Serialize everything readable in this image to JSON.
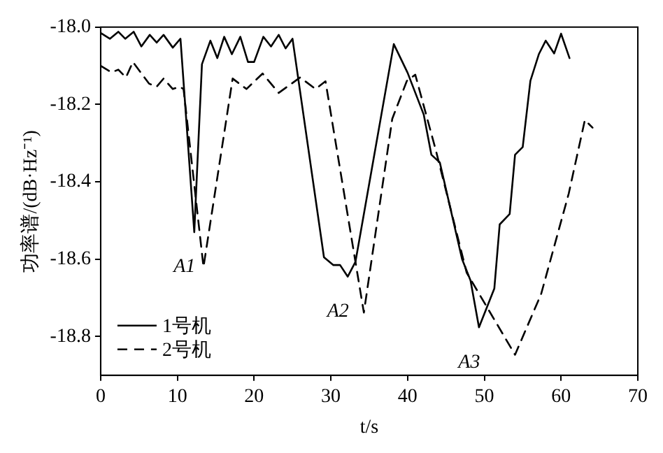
{
  "chart_data": {
    "type": "line",
    "xlabel": "t/s",
    "ylabel": "功率谱/(dB·Hz⁻¹)",
    "xlim": [
      0,
      70
    ],
    "xticks": [
      0,
      10,
      20,
      30,
      40,
      50,
      60,
      70
    ],
    "ylim": [
      -18.9,
      -18.0
    ],
    "yticks": [
      {
        "value": -18.0,
        "label": "-18.0"
      },
      {
        "value": -18.2,
        "label": "-18.2"
      },
      {
        "value": -18.4,
        "label": "-18.4"
      },
      {
        "value": -18.6,
        "label": "-18.6"
      },
      {
        "value": -18.8,
        "label": "-18.8"
      }
    ],
    "grid": false,
    "legend": "bottom left",
    "marker": "none",
    "series": [
      {
        "name": "1号机",
        "color": "#000000",
        "line_style": "solid",
        "x": [
          0,
          1.2,
          2.3,
          3.2,
          4.3,
          5.3,
          6.4,
          7.3,
          8.2,
          9.4,
          10.4,
          12.2,
          13.2,
          14.3,
          15.2,
          16.1,
          17.1,
          18.2,
          19.2,
          20.0,
          21.2,
          22.2,
          23.2,
          24.1,
          25.0,
          29.1,
          30.3,
          31.2,
          32.2,
          33.2,
          38.2,
          40.0,
          42.1,
          43.1,
          44.2,
          47.1,
          48.2,
          49.3,
          51.3,
          52.0,
          53.3,
          54.0,
          55.0,
          56.0,
          57.1,
          58.0,
          59.1,
          60.0,
          61.1
        ],
        "values": [
          -18.015,
          -18.03,
          -18.012,
          -18.03,
          -18.012,
          -18.05,
          -18.02,
          -18.04,
          -18.02,
          -18.053,
          -18.03,
          -18.53,
          -18.096,
          -18.035,
          -18.08,
          -18.025,
          -18.07,
          -18.025,
          -18.09,
          -18.09,
          -18.025,
          -18.05,
          -18.02,
          -18.055,
          -18.03,
          -18.595,
          -18.615,
          -18.615,
          -18.645,
          -18.607,
          -18.044,
          -18.118,
          -18.226,
          -18.33,
          -18.35,
          -18.6,
          -18.655,
          -18.776,
          -18.676,
          -18.51,
          -18.483,
          -18.33,
          -18.31,
          -18.139,
          -18.07,
          -18.035,
          -18.068,
          -18.017,
          -18.08
        ]
      },
      {
        "name": "2号机",
        "color": "#000000",
        "line_style": "dashed",
        "x": [
          0,
          1.4,
          2.3,
          3.3,
          4.2,
          6.3,
          7.3,
          8.2,
          9.4,
          10.3,
          10.8,
          13.4,
          17.2,
          19.0,
          21.1,
          23.2,
          26.0,
          28.0,
          29.3,
          34.3,
          38.0,
          39.9,
          41.0,
          43.7,
          47.7,
          54.0,
          57.4,
          61.0,
          63.1,
          64.1
        ],
        "values": [
          -18.1,
          -18.117,
          -18.11,
          -18.13,
          -18.09,
          -18.146,
          -18.154,
          -18.133,
          -18.16,
          -18.154,
          -18.16,
          -18.62,
          -18.133,
          -18.16,
          -18.12,
          -18.17,
          -18.13,
          -18.16,
          -18.14,
          -18.738,
          -18.237,
          -18.139,
          -18.123,
          -18.32,
          -18.635,
          -18.847,
          -18.69,
          -18.43,
          -18.24,
          -18.26
        ]
      }
    ],
    "annotations": [
      {
        "text": "A1",
        "x": 12.2,
        "y": -18.53
      },
      {
        "text": "A2",
        "x": 32.2,
        "y": -18.645
      },
      {
        "text": "A3",
        "x": 49.3,
        "y": -18.776
      }
    ]
  }
}
